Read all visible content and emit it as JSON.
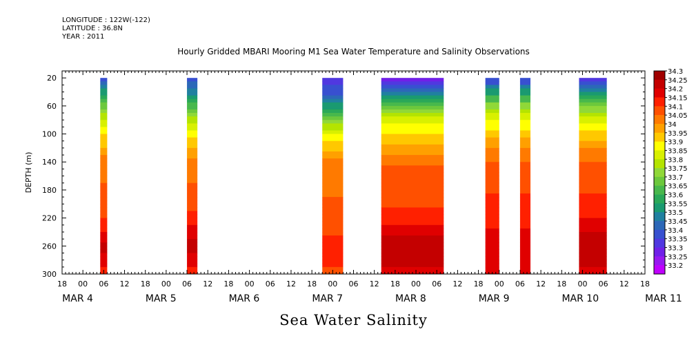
{
  "header": {
    "longitude": "LONGITUDE : 122W(-122)",
    "latitude": "LATITUDE : 36.8N",
    "year": "YEAR : 2011"
  },
  "chart_data": {
    "type": "heatmap",
    "title": "Hourly Gridded MBARI Mooring M1 Sea Water Temperature and Salinity Observations",
    "xlabel": "Sea Water Salinity",
    "ylabel": "DEPTH (m)",
    "x_hour_ticks": [
      "18",
      "00",
      "06",
      "12",
      "18",
      "00",
      "06",
      "12",
      "18",
      "00",
      "06",
      "12",
      "18",
      "00",
      "06",
      "12",
      "18",
      "00",
      "06",
      "12",
      "18",
      "00",
      "06",
      "12",
      "18",
      "00",
      "06",
      "12",
      "18"
    ],
    "x_day_labels": [
      "MAR 4",
      "MAR 5",
      "MAR 6",
      "MAR 7",
      "MAR 8",
      "MAR 9",
      "MAR 10",
      "MAR 11"
    ],
    "xlim_hours_since_mar3_18": [
      0,
      168
    ],
    "y_ticks": [
      20,
      60,
      100,
      140,
      180,
      220,
      260,
      300
    ],
    "ylim": [
      300,
      10
    ],
    "legend_levels": [
      "34.3",
      "34.25",
      "34.2",
      "34.15",
      "34.1",
      "34.05",
      "34",
      "33.95",
      "33.9",
      "33.85",
      "33.8",
      "33.75",
      "33.7",
      "33.65",
      "33.6",
      "33.55",
      "33.5",
      "33.45",
      "33.4",
      "33.35",
      "33.3",
      "33.25",
      "33.2"
    ],
    "legend_colors": [
      "#a00000",
      "#c40000",
      "#e00000",
      "#ff2000",
      "#ff5000",
      "#ff7a00",
      "#ffa000",
      "#ffc800",
      "#ffff00",
      "#d8f000",
      "#b4e400",
      "#90d838",
      "#6cc83c",
      "#48b84c",
      "#2aa858",
      "#1a9a70",
      "#2080a0",
      "#2c68b8",
      "#3850d0",
      "#5038e0",
      "#7020e8",
      "#9818f0",
      "#c000ff"
    ],
    "legend_placement": "right",
    "data_windows": [
      {
        "start": "MAR 4 05",
        "end": "MAR 4 07"
      },
      {
        "start": "MAR 5 06",
        "end": "MAR 5 09"
      },
      {
        "start": "MAR 6 21",
        "end": "MAR 7 03"
      },
      {
        "start": "MAR 7 14",
        "end": "MAR 8 08"
      },
      {
        "start": "MAR 8 20",
        "end": "MAR 8 24"
      },
      {
        "start": "MAR 9 06",
        "end": "MAR 9 09"
      },
      {
        "start": "MAR 9 23",
        "end": "MAR 10 07"
      }
    ],
    "profiles": [
      {
        "depth": [
          20,
          40,
          60,
          80,
          100,
          120,
          140,
          160,
          180,
          200,
          220,
          240,
          260,
          280,
          300
        ],
        "salinity": [
          33.4,
          33.55,
          33.7,
          33.82,
          33.92,
          33.98,
          34.06,
          34.07,
          34.08,
          34.1,
          34.12,
          34.18,
          34.25,
          34.2,
          34.15
        ]
      },
      {
        "depth": [
          20,
          40,
          60,
          80,
          100,
          120,
          140,
          160,
          180,
          200,
          220,
          240,
          260,
          280,
          300
        ],
        "salinity": [
          33.38,
          33.5,
          33.65,
          33.8,
          33.9,
          33.97,
          34.05,
          34.07,
          34.08,
          34.1,
          34.14,
          34.2,
          34.25,
          34.2,
          34.15
        ]
      },
      {
        "depth": [
          20,
          40,
          60,
          80,
          100,
          120,
          140,
          160,
          180,
          200,
          220,
          240,
          260,
          280,
          300
        ],
        "salinity": [
          33.35,
          33.4,
          33.55,
          33.72,
          33.88,
          33.96,
          34.04,
          34.06,
          34.07,
          34.08,
          34.1,
          34.12,
          34.14,
          34.13,
          34.12
        ]
      },
      {
        "depth": [
          20,
          40,
          60,
          80,
          100,
          120,
          140,
          160,
          180,
          200,
          220,
          240,
          260,
          280,
          300
        ],
        "salinity": [
          33.25,
          33.48,
          33.7,
          33.85,
          33.92,
          34.0,
          34.06,
          34.1,
          34.12,
          34.12,
          34.15,
          34.2,
          34.27,
          34.25,
          34.2
        ]
      },
      {
        "depth": [
          20,
          40,
          60,
          80,
          100,
          120,
          140,
          160,
          180,
          200,
          220,
          240,
          260,
          280,
          300
        ],
        "salinity": [
          33.35,
          33.55,
          33.75,
          33.88,
          33.95,
          34.02,
          34.08,
          34.1,
          34.12,
          34.14,
          34.16,
          34.18,
          34.22,
          34.2,
          34.18
        ]
      },
      {
        "depth": [
          20,
          40,
          60,
          80,
          100,
          120,
          140,
          160,
          180,
          200,
          220,
          240,
          260,
          280,
          300
        ],
        "salinity": [
          33.35,
          33.55,
          33.75,
          33.88,
          33.95,
          34.02,
          34.08,
          34.1,
          34.12,
          34.14,
          34.16,
          34.18,
          34.22,
          34.2,
          34.18
        ]
      },
      {
        "depth": [
          20,
          40,
          60,
          80,
          100,
          120,
          140,
          160,
          180,
          200,
          220,
          240,
          260,
          280,
          300
        ],
        "salinity": [
          33.32,
          33.55,
          33.72,
          33.86,
          33.94,
          34.02,
          34.08,
          34.1,
          34.12,
          34.14,
          34.18,
          34.22,
          34.27,
          34.24,
          34.2
        ]
      }
    ]
  }
}
